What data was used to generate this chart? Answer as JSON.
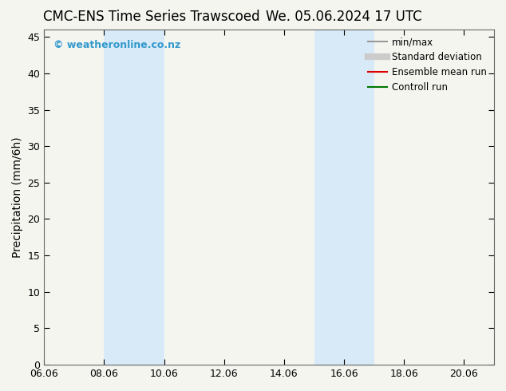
{
  "title_left": "CMC-ENS Time Series Trawscoed",
  "title_right": "We. 05.06.2024 17 UTC",
  "ylabel": "Precipitation (mm/6h)",
  "xlabel": "",
  "xlim": [
    6.06,
    21.06
  ],
  "ylim": [
    0,
    46
  ],
  "yticks": [
    0,
    5,
    10,
    15,
    20,
    25,
    30,
    35,
    40,
    45
  ],
  "xticks": [
    6.06,
    8.06,
    10.06,
    12.06,
    14.06,
    16.06,
    18.06,
    20.06
  ],
  "xticklabels": [
    "06.06",
    "08.06",
    "10.06",
    "12.06",
    "14.06",
    "16.06",
    "18.06",
    "20.06"
  ],
  "background_color": "#f5f5f0",
  "plot_bg_color": "#f5f5f0",
  "shaded_regions": [
    {
      "xmin": 8.06,
      "xmax": 10.06,
      "color": "#d8eaf7"
    },
    {
      "xmin": 15.06,
      "xmax": 16.06,
      "color": "#d8eaf7"
    },
    {
      "xmin": 16.06,
      "xmax": 17.06,
      "color": "#d8eaf7"
    }
  ],
  "watermark_text": "© weatheronline.co.nz",
  "watermark_color": "#3399cc",
  "legend_entries": [
    {
      "label": "min/max",
      "color": "#999999",
      "lw": 1.5
    },
    {
      "label": "Standard deviation",
      "color": "#cccccc",
      "lw": 6
    },
    {
      "label": "Ensemble mean run",
      "color": "#dd0000",
      "lw": 1.5
    },
    {
      "label": "Controll run",
      "color": "#007700",
      "lw": 1.5
    }
  ],
  "title_fontsize": 12,
  "tick_fontsize": 9,
  "label_fontsize": 10,
  "legend_fontsize": 8.5,
  "watermark_fontsize": 9
}
